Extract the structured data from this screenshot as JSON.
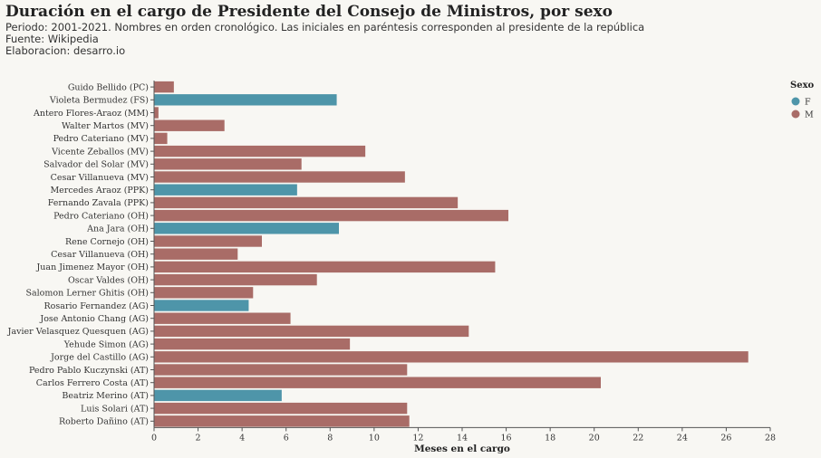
{
  "header": {
    "title": "Duración en el cargo de Presidente del Consejo de Ministros, por sexo",
    "subtitle": "Periodo: 2001-2021. Nombres en orden cronológico. Las iniciales en paréntesis corresponden al presidente de la república",
    "source": "Fuente: Wikipedia",
    "credit": "Elaboracion: desarro.io"
  },
  "colors": {
    "F": "#4e95a9",
    "M": "#a96c67",
    "axis": "#555555"
  },
  "chart_data": {
    "type": "bar",
    "orientation": "horizontal",
    "xlabel": "Meses en el cargo",
    "ylabel": "",
    "xlim": [
      0,
      28
    ],
    "xticks": [
      0,
      2,
      4,
      6,
      8,
      10,
      12,
      14,
      16,
      18,
      20,
      22,
      24,
      26,
      28
    ],
    "grid": false,
    "legend": {
      "title": "Sexo",
      "position": "top-right",
      "entries": [
        "F",
        "M"
      ]
    },
    "categories": [
      "Guido Bellido (PC)",
      "Violeta Bermudez (FS)",
      "Antero Flores-Araoz (MM)",
      "Walter Martos (MV)",
      "Pedro Cateriano (MV)",
      "Vicente Zeballos (MV)",
      "Salvador del Solar (MV)",
      "Cesar Villanueva (MV)",
      "Mercedes Araoz (PPK)",
      "Fernando Zavala (PPK)",
      "Pedro Cateriano (OH)",
      "Ana Jara (OH)",
      "Rene Cornejo (OH)",
      "Cesar Villanueva (OH)",
      "Juan Jimenez Mayor (OH)",
      "Oscar Valdes (OH)",
      "Salomon Lerner Ghitis (OH)",
      "Rosario Fernandez (AG)",
      "Jose Antonio Chang (AG)",
      "Javier Velasquez Quesquen (AG)",
      "Yehude Simon (AG)",
      "Jorge del Castillo (AG)",
      "Pedro Pablo Kuczynski (AT)",
      "Carlos Ferrero Costa (AT)",
      "Beatriz Merino (AT)",
      "Luis Solari (AT)",
      "Roberto Dañino (AT)"
    ],
    "values": [
      0.9,
      8.3,
      0.2,
      3.2,
      0.6,
      9.6,
      6.7,
      11.4,
      6.5,
      13.8,
      16.1,
      8.4,
      4.9,
      3.8,
      15.5,
      7.4,
      4.5,
      4.3,
      6.2,
      14.3,
      8.9,
      27.0,
      11.5,
      20.3,
      5.8,
      11.5,
      11.6
    ],
    "sexo": [
      "M",
      "F",
      "M",
      "M",
      "M",
      "M",
      "M",
      "M",
      "F",
      "M",
      "M",
      "F",
      "M",
      "M",
      "M",
      "M",
      "M",
      "F",
      "M",
      "M",
      "M",
      "M",
      "M",
      "M",
      "F",
      "M",
      "M"
    ]
  }
}
